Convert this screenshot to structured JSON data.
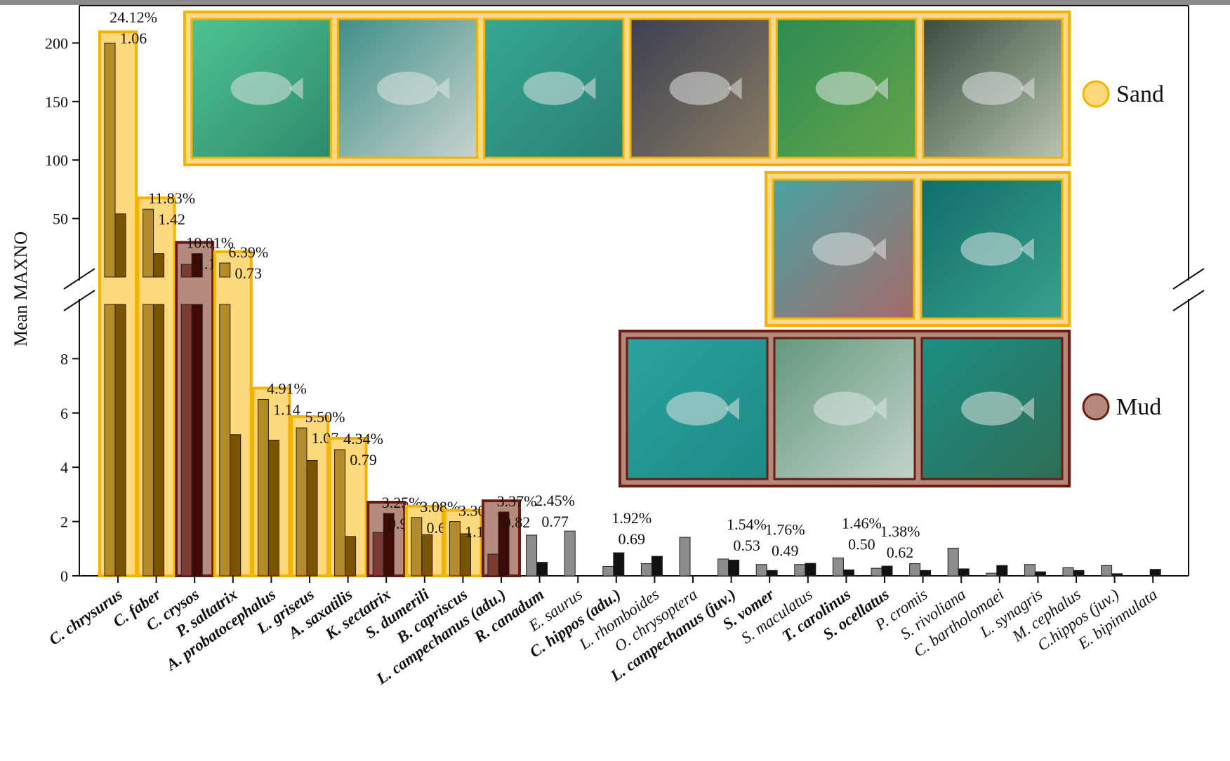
{
  "chart_data": {
    "type": "bar",
    "ylabel": "Mean MAXNO",
    "axis_break": {
      "lower": [
        0,
        10
      ],
      "upper": [
        0,
        220
      ]
    },
    "ylim": [
      0,
      220
    ],
    "yticks_lower": [
      0,
      2,
      4,
      6,
      8
    ],
    "yticks_upper": [
      50,
      100,
      150,
      200
    ],
    "series": [
      {
        "name": "",
        "color": "#8c8c8c"
      },
      {
        "name": "",
        "color": "#111111"
      }
    ],
    "legend": [
      {
        "label": "Sand",
        "color": "#fbd97c",
        "border": "#f2b400"
      },
      {
        "label": "Mud",
        "color": "#b48a7d",
        "border": "#6b1d12"
      }
    ],
    "categories": [
      {
        "name": "C. chrysurus",
        "bold": true,
        "habitat": "sand",
        "pct": "24.12%",
        "ratio": "1.06",
        "values": [
          200,
          54
        ]
      },
      {
        "name": "C. faber",
        "bold": true,
        "habitat": "sand",
        "pct": "11.83%",
        "ratio": "1.42",
        "values": [
          58,
          20
        ]
      },
      {
        "name": "C. crysos",
        "bold": true,
        "habitat": "mud",
        "pct": "10.01%",
        "ratio": "1.14",
        "values": [
          11,
          20
        ]
      },
      {
        "name": "P. saltatrix",
        "bold": true,
        "habitat": "sand",
        "pct": "6.39%",
        "ratio": "0.73",
        "values": [
          12,
          5.2
        ]
      },
      {
        "name": "A. probatocephalus",
        "bold": true,
        "habitat": "sand",
        "pct": "4.91%",
        "ratio": "1.14",
        "values": [
          6.5,
          5.0
        ]
      },
      {
        "name": "L. griseus",
        "bold": true,
        "habitat": "sand",
        "pct": "5.50%",
        "ratio": "1.07",
        "values": [
          5.45,
          4.25
        ]
      },
      {
        "name": "A. saxatilis",
        "bold": true,
        "habitat": "sand",
        "pct": "4.34%",
        "ratio": "0.79",
        "values": [
          4.65,
          1.45
        ]
      },
      {
        "name": "K. sectatrix",
        "bold": true,
        "habitat": "mud",
        "pct": "3.25%",
        "ratio": "0.91",
        "values": [
          1.6,
          2.3
        ]
      },
      {
        "name": "S. dumerili",
        "bold": true,
        "habitat": "sand",
        "pct": "3.08%",
        "ratio": "0.68",
        "values": [
          2.15,
          1.52
        ]
      },
      {
        "name": "B. capriscus",
        "bold": true,
        "habitat": "sand",
        "pct": "3.30%",
        "ratio": "1.18",
        "values": [
          2.0,
          1.55
        ]
      },
      {
        "name": "L. campechanus (adu.)",
        "bold": true,
        "habitat": "mud",
        "pct": "3.37%",
        "ratio": "0.82",
        "values": [
          0.8,
          2.35
        ]
      },
      {
        "name": "R. canadum",
        "bold": true,
        "habitat": "",
        "pct": "2.45%",
        "ratio": "0.77",
        "values": [
          1.5,
          0.5
        ]
      },
      {
        "name": "E. saurus",
        "bold": false,
        "habitat": "",
        "pct": "",
        "ratio": "",
        "values": [
          1.65,
          0
        ]
      },
      {
        "name": "C. hippos (adu.)",
        "bold": true,
        "habitat": "",
        "pct": "1.92%",
        "ratio": "0.69",
        "values": [
          0.35,
          0.85
        ]
      },
      {
        "name": "L. rhomboides",
        "bold": false,
        "habitat": "",
        "pct": "",
        "ratio": "",
        "values": [
          0.45,
          0.72
        ]
      },
      {
        "name": "O. chrysoptera",
        "bold": false,
        "habitat": "",
        "pct": "",
        "ratio": "",
        "values": [
          1.42,
          0
        ]
      },
      {
        "name": "L. campechanus (juv.)",
        "bold": true,
        "habitat": "",
        "pct": "1.54%",
        "ratio": "0.53",
        "values": [
          0.62,
          0.58
        ]
      },
      {
        "name": "S. vomer",
        "bold": true,
        "habitat": "",
        "pct": "1.76%",
        "ratio": "0.49",
        "values": [
          0.42,
          0.2
        ]
      },
      {
        "name": "S. maculatus",
        "bold": false,
        "habitat": "",
        "pct": "",
        "ratio": "",
        "values": [
          0.42,
          0.46
        ]
      },
      {
        "name": "T. carolinus",
        "bold": true,
        "habitat": "",
        "pct": "1.46%",
        "ratio": "0.50",
        "values": [
          0.66,
          0.22
        ]
      },
      {
        "name": "S. ocellatus",
        "bold": true,
        "habitat": "",
        "pct": "1.38%",
        "ratio": "0.62",
        "values": [
          0.28,
          0.36
        ]
      },
      {
        "name": "P. cromis",
        "bold": false,
        "habitat": "",
        "pct": "",
        "ratio": "",
        "values": [
          0.45,
          0.2
        ]
      },
      {
        "name": "S. rivoliana",
        "bold": false,
        "habitat": "",
        "pct": "",
        "ratio": "",
        "values": [
          1.02,
          0.26
        ]
      },
      {
        "name": "C. bartholomaei",
        "bold": false,
        "habitat": "",
        "pct": "",
        "ratio": "",
        "values": [
          0.1,
          0.38
        ]
      },
      {
        "name": "L. synagris",
        "bold": false,
        "habitat": "",
        "pct": "",
        "ratio": "",
        "values": [
          0.42,
          0.15
        ]
      },
      {
        "name": "M. cephalus",
        "bold": false,
        "habitat": "",
        "pct": "",
        "ratio": "",
        "values": [
          0.3,
          0.2
        ]
      },
      {
        "name": "C.hippos (juv.)",
        "bold": false,
        "habitat": "",
        "pct": "",
        "ratio": "",
        "values": [
          0.38,
          0.08
        ]
      },
      {
        "name": "E. bipinnulata",
        "bold": false,
        "habitat": "",
        "pct": "",
        "ratio": "",
        "values": [
          0,
          0.24
        ]
      }
    ],
    "photos": [
      {
        "group": "sand",
        "colors": [
          "#4ec392",
          "#2d8a6a"
        ]
      },
      {
        "group": "sand",
        "colors": [
          "#3e8f87",
          "#c9d3cf"
        ]
      },
      {
        "group": "sand",
        "colors": [
          "#35a891",
          "#2a7f73"
        ]
      },
      {
        "group": "sand",
        "colors": [
          "#3c3f52",
          "#8a7d63"
        ]
      },
      {
        "group": "sand",
        "colors": [
          "#2c8b52",
          "#65a54a"
        ]
      },
      {
        "group": "sand",
        "colors": [
          "#3b4b3d",
          "#b7c5b0"
        ]
      },
      {
        "group": "sand",
        "colors": [
          "#4aa3a3",
          "#a56a6a"
        ]
      },
      {
        "group": "sand",
        "colors": [
          "#0f6e6c",
          "#3aa08c"
        ]
      },
      {
        "group": "mud",
        "colors": [
          "#2aa39c",
          "#1c8a86"
        ]
      },
      {
        "group": "mud",
        "colors": [
          "#63987e",
          "#c2d4c8"
        ]
      },
      {
        "group": "mud",
        "colors": [
          "#1b8f84",
          "#2f6d55"
        ]
      }
    ]
  }
}
